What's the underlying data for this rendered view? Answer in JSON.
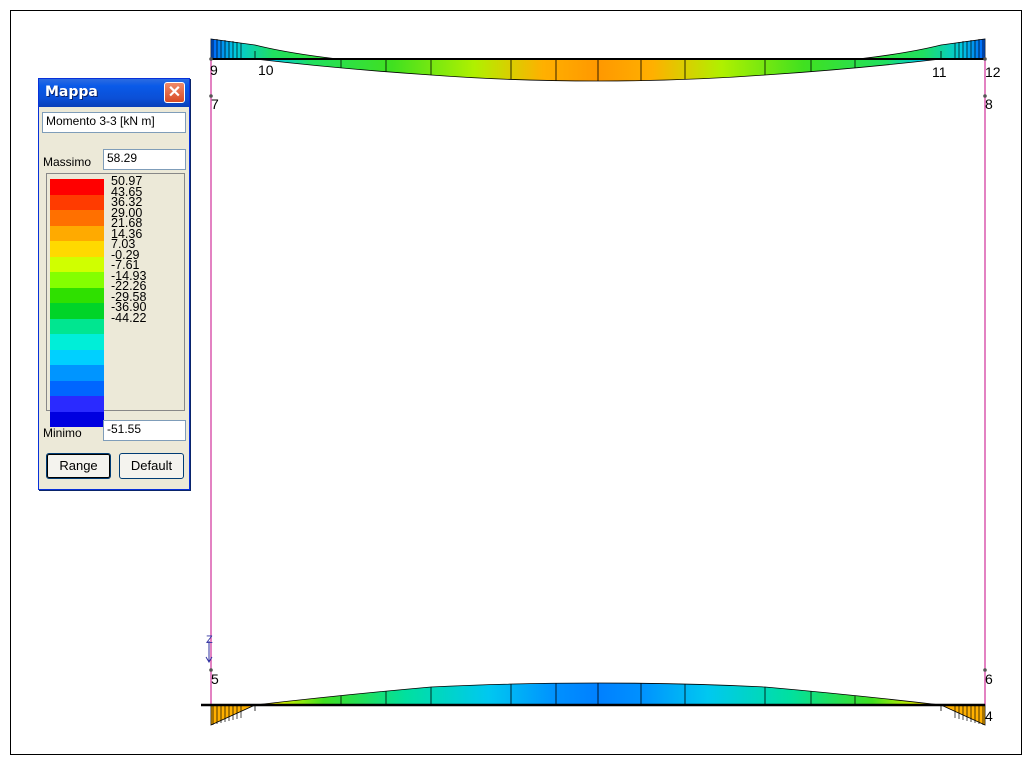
{
  "window": {
    "title": "Mappa",
    "close_glyph": "✕",
    "quantity": "Momento 3-3 [kN  m]",
    "max_label": "Massimo",
    "max_value": "58.29",
    "min_label": "Minimo",
    "min_value": "-51.55",
    "range_button": "Range",
    "default_button": "Default"
  },
  "legend": {
    "colors": [
      "#ff0000",
      "#ff3b00",
      "#ff7000",
      "#ffaa00",
      "#ffd900",
      "#d0ff00",
      "#84ff00",
      "#2fe000",
      "#00d428",
      "#00e690",
      "#00eed8",
      "#00d0ff",
      "#0095ff",
      "#0066ff",
      "#2a2aff",
      "#0000e0"
    ],
    "ticks": [
      "50.97",
      "43.65",
      "36.32",
      "29.00",
      "21.68",
      "14.36",
      "7.03",
      "-0.29",
      "-7.61",
      "-14.93",
      "-22.26",
      "-29.58",
      "-36.90",
      "-44.22"
    ]
  },
  "nodes": {
    "n9": "9",
    "n10": "10",
    "n11": "11",
    "n12": "12",
    "n7": "7",
    "n8": "8",
    "n5": "5",
    "n6": "6",
    "n4": "4",
    "axis_z": "Z"
  }
}
